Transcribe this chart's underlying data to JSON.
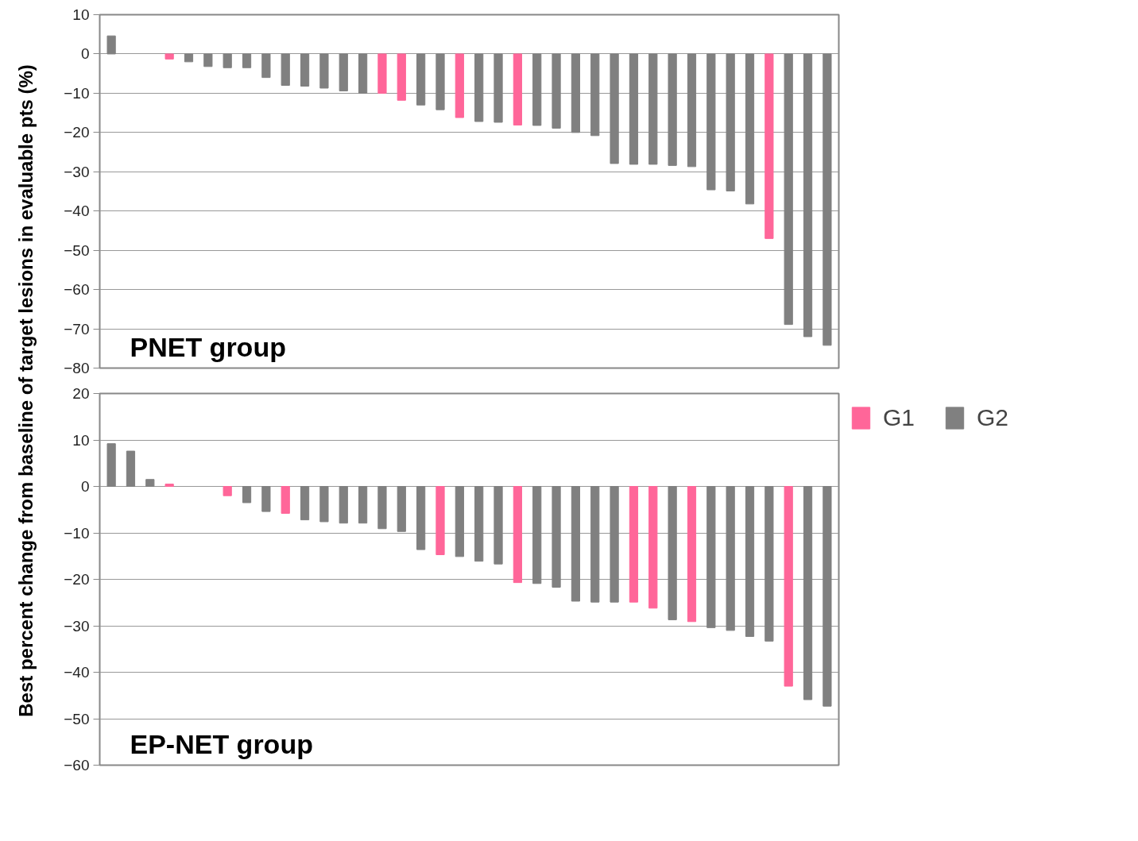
{
  "chart_data": [
    {
      "type": "bar",
      "ylabel": "Best percent change from baseline of target lesions in evaluable pts (%)",
      "categories": [
        null,
        null,
        null,
        null,
        null,
        null,
        null,
        null,
        null,
        null,
        null,
        null,
        null,
        null,
        null,
        null,
        null,
        null,
        null,
        null,
        null,
        null,
        null,
        null,
        null,
        null,
        null,
        null,
        null,
        null,
        null,
        null,
        null,
        null,
        null,
        null,
        null,
        null
      ],
      "series": [
        {
          "color": "#ff6699",
          "values": [
            null,
            null,
            null,
            -1.3,
            null,
            null,
            null,
            null,
            null,
            null,
            null,
            null,
            null,
            null,
            -10,
            -11.8,
            null,
            null,
            -16.2,
            null,
            null,
            -18.1,
            null,
            null,
            null,
            null,
            null,
            null,
            null,
            null,
            null,
            null,
            null,
            null,
            -47,
            null,
            null,
            null
          ]
        },
        {
          "color": "#808080",
          "values": [
            4.6,
            null,
            null,
            null,
            -2,
            -3.2,
            -3.5,
            -3.5,
            -6,
            -8,
            -8.2,
            -8.7,
            -9.4,
            -10,
            null,
            null,
            -13,
            -14.2,
            null,
            -17.2,
            -17.4,
            null,
            -18.2,
            -18.9,
            -20,
            -20.8,
            -27.9,
            -28.1,
            -28.1,
            -28.4,
            -28.7,
            -34.6,
            -34.9,
            -38.2,
            null,
            -68.9,
            -72,
            -74.2
          ]
        }
      ],
      "ylim": [
        -80,
        10
      ],
      "yticks": [
        10,
        0,
        -10,
        -20,
        -30,
        -40,
        -50,
        -60,
        -70,
        -80
      ],
      "grid": "y",
      "tick_labels": "y",
      "annotations": [
        "PNET group"
      ]
    },
    {
      "type": "bar",
      "categories": [
        null,
        null,
        null,
        null,
        null,
        null,
        null,
        null,
        null,
        null,
        null,
        null,
        null,
        null,
        null,
        null,
        null,
        null,
        null,
        null,
        null,
        null,
        null,
        null,
        null,
        null,
        null,
        null,
        null,
        null,
        null,
        null,
        null,
        null,
        null,
        null,
        null,
        null
      ],
      "series": [
        {
          "name": "G1",
          "color": "#ff6699",
          "values": [
            null,
            null,
            null,
            0.5,
            null,
            null,
            -2,
            null,
            null,
            -5.8,
            null,
            null,
            null,
            null,
            null,
            null,
            null,
            -14.7,
            null,
            null,
            null,
            -20.7,
            null,
            null,
            null,
            null,
            null,
            -24.9,
            -26.2,
            null,
            -29.1,
            null,
            null,
            null,
            null,
            -43,
            null,
            null
          ]
        },
        {
          "name": "G2",
          "color": "#808080",
          "values": [
            9.2,
            7.6,
            1.5,
            null,
            null,
            null,
            null,
            -3.5,
            -5.4,
            null,
            -7.2,
            -7.6,
            -7.9,
            -7.9,
            -9.1,
            -9.7,
            -13.6,
            null,
            -15.1,
            -16.1,
            -16.7,
            null,
            -20.9,
            -21.7,
            -24.7,
            -24.9,
            -24.9,
            null,
            null,
            -28.7,
            null,
            -30.4,
            -31.0,
            -32.3,
            -33.3,
            null,
            -45.9,
            -47.3
          ]
        }
      ],
      "ylim": [
        -60,
        20
      ],
      "yticks": [
        20,
        10,
        0,
        -10,
        -20,
        -30,
        -40,
        -50,
        -60
      ],
      "grid": "y",
      "tick_labels": "y",
      "legend": "right",
      "annotations": [
        "EP-NET group"
      ]
    }
  ]
}
